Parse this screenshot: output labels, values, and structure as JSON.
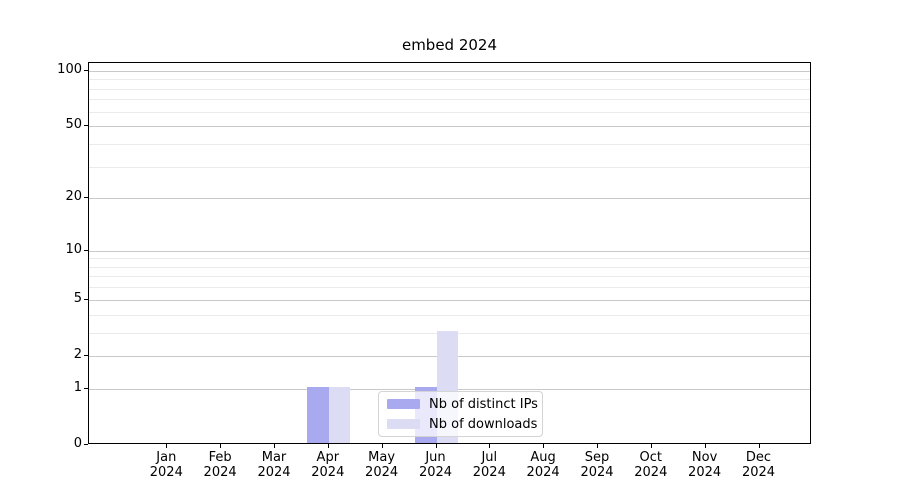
{
  "title": "embed 2024",
  "chart_data": {
    "type": "bar",
    "title": "embed 2024",
    "categories": [
      {
        "month": "Jan",
        "year": "2024"
      },
      {
        "month": "Feb",
        "year": "2024"
      },
      {
        "month": "Mar",
        "year": "2024"
      },
      {
        "month": "Apr",
        "year": "2024"
      },
      {
        "month": "May",
        "year": "2024"
      },
      {
        "month": "Jun",
        "year": "2024"
      },
      {
        "month": "Jul",
        "year": "2024"
      },
      {
        "month": "Aug",
        "year": "2024"
      },
      {
        "month": "Sep",
        "year": "2024"
      },
      {
        "month": "Oct",
        "year": "2024"
      },
      {
        "month": "Nov",
        "year": "2024"
      },
      {
        "month": "Dec",
        "year": "2024"
      }
    ],
    "series": [
      {
        "name": "Nb of distinct IPs",
        "color": "#a9a9f0",
        "values": [
          0,
          0,
          0,
          1,
          0,
          1,
          0,
          0,
          0,
          0,
          0,
          0
        ]
      },
      {
        "name": "Nb of downloads",
        "color": "#dcdcf5",
        "values": [
          0,
          0,
          0,
          1,
          0,
          3,
          0,
          0,
          0,
          0,
          0,
          0
        ]
      }
    ],
    "yscale": "log1p",
    "ylim": [
      0,
      110
    ],
    "y_major_ticks": [
      0,
      1,
      2,
      5,
      10,
      20,
      50,
      100
    ],
    "y_minor_ticks": [
      3,
      4,
      6,
      7,
      8,
      9,
      30,
      40,
      60,
      70,
      80,
      90
    ],
    "grid": true,
    "legend_position": "inside-bottom-center"
  },
  "colors": {
    "major_grid": "#c9c9c9",
    "minor_grid": "#eaeaea",
    "spine": "#000000",
    "legend_border": "#d4d4d4"
  }
}
